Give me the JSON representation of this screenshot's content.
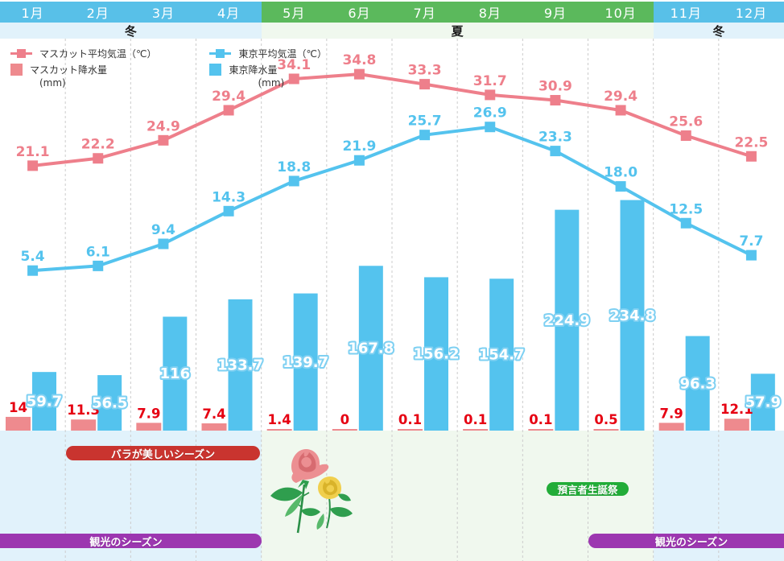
{
  "header": {
    "months": [
      "1月",
      "2月",
      "3月",
      "4月",
      "5月",
      "6月",
      "7月",
      "8月",
      "9月",
      "10月",
      "11月",
      "12月"
    ],
    "month_season": [
      "winter",
      "winter",
      "winter",
      "winter",
      "summer",
      "summer",
      "summer",
      "summer",
      "summer",
      "summer",
      "winter",
      "winter"
    ]
  },
  "season_bands": [
    {
      "label": "冬",
      "type": "winter",
      "span_months": 4
    },
    {
      "label": "夏",
      "type": "summer",
      "span_months": 6
    },
    {
      "label": "冬",
      "type": "winter",
      "span_months": 2
    }
  ],
  "legend": {
    "muscat_temp": "マスカット平均気温（℃）",
    "muscat_precip": "マスカット降水量",
    "tokyo_temp": "東京平均気温（℃）",
    "tokyo_precip": "東京降水量",
    "unit": "(mm)"
  },
  "chart_data": {
    "type": "combo",
    "subtype": "line+bar climate chart",
    "categories": [
      "1月",
      "2月",
      "3月",
      "4月",
      "5月",
      "6月",
      "7月",
      "8月",
      "9月",
      "10月",
      "11月",
      "12月"
    ],
    "series": [
      {
        "name": "マスカット平均気温（℃）",
        "type": "line",
        "color": "#ee7f8b",
        "values": [
          21.1,
          22.2,
          24.9,
          29.4,
          34.1,
          34.8,
          33.3,
          31.7,
          30.9,
          29.4,
          25.6,
          22.5
        ],
        "labels": [
          "21.1",
          "22.2",
          "24.9",
          "29.4",
          "34.1",
          "34.8",
          "33.3",
          "31.7",
          "30.9",
          "29.4",
          "25.6",
          "22.5"
        ]
      },
      {
        "name": "東京平均気温（℃）",
        "type": "line",
        "color": "#54c3ee",
        "values": [
          5.4,
          6.1,
          9.4,
          14.3,
          18.8,
          21.9,
          25.7,
          26.9,
          23.3,
          18.0,
          12.5,
          7.7
        ],
        "labels": [
          "5.4",
          "6.1",
          "9.4",
          "14.3",
          "18.8",
          "21.9",
          "25.7",
          "26.9",
          "23.3",
          "18.0",
          "12.5",
          "7.7"
        ]
      },
      {
        "name": "マスカット降水量(mm)",
        "type": "bar",
        "color": "#ee8a8e",
        "label_color": "#e60012",
        "values": [
          14,
          11.3,
          7.9,
          7.4,
          1.4,
          0,
          0.1,
          0.1,
          0.1,
          0.5,
          7.9,
          12.1
        ],
        "labels": [
          "14",
          "11.3",
          "7.9",
          "7.4",
          "1.4",
          "0",
          "0.1",
          "0.1",
          "0.1",
          "0.5",
          "7.9",
          "12.1"
        ]
      },
      {
        "name": "東京降水量(mm)",
        "type": "bar",
        "color": "#54c3ee",
        "label_color": "#ffffff",
        "values": [
          59.7,
          56.5,
          116,
          133.7,
          139.7,
          167.8,
          156.2,
          154.7,
          224.9,
          234.8,
          96.3,
          57.9
        ],
        "labels": [
          "59.7",
          "56.5",
          "116",
          "133.7",
          "139.7",
          "167.8",
          "156.2",
          "154.7",
          "224.9",
          "234.8",
          "96.3",
          "57.9"
        ]
      }
    ],
    "units": {
      "temperature": "℃",
      "precipitation": "mm"
    },
    "grid": "vertical-dashed",
    "legend_position": "top-left"
  },
  "annotations": {
    "rose_season": "バラが美しいシーズン",
    "prophet_birthday": "預言者生誕祭",
    "tourism_left": "観光のシーズン",
    "tourism_right": "観光のシーズン"
  },
  "colors": {
    "header_winter": "#58c0e8",
    "header_summer": "#5bb95c",
    "band_winter": "#e1f2fb",
    "band_summer": "#f0f8ee",
    "muscat_line": "#ee7f8b",
    "tokyo_line": "#54c3ee",
    "muscat_bar": "#ee8a8e",
    "muscat_bar_label": "#e60012",
    "tokyo_bar_label_halo": "#7ed0f2",
    "banner_red": "#c9342f",
    "banner_green": "#22ac38",
    "banner_purple": "#9c37b0"
  }
}
